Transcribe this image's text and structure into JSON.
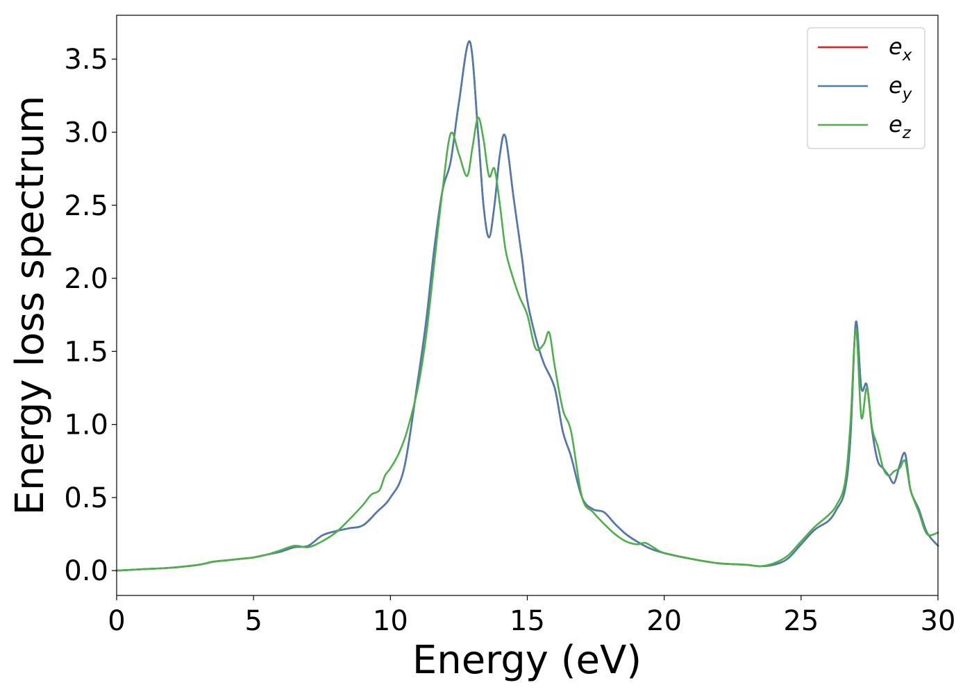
{
  "chart_data": {
    "type": "line",
    "title": "",
    "xlabel": "Energy (eV)",
    "ylabel": "Energy loss spectrum",
    "xlim": [
      0,
      30
    ],
    "ylim": [
      -0.17,
      3.8
    ],
    "xticks": [
      0,
      5,
      10,
      15,
      20,
      25,
      30
    ],
    "xtick_labels": [
      "0",
      "5",
      "10",
      "15",
      "20",
      "25",
      "30"
    ],
    "yticks": [
      0.0,
      0.5,
      1.0,
      1.5,
      2.0,
      2.5,
      3.0,
      3.5
    ],
    "ytick_labels": [
      "0.0",
      "0.5",
      "1.0",
      "1.5",
      "2.0",
      "2.5",
      "3.0",
      "3.5"
    ],
    "grid": false,
    "legend_position": "top-right",
    "series": [
      {
        "name": "e",
        "subscript": "x",
        "color": "#e41a1c",
        "x": [
          0,
          1,
          2,
          3,
          3.5,
          4,
          4.5,
          5,
          5.5,
          6,
          6.5,
          7,
          7.5,
          8,
          8.5,
          9,
          9.5,
          10,
          10.5,
          11,
          11.3,
          11.6,
          11.9,
          12.2,
          12.5,
          12.9,
          13.2,
          13.4,
          13.6,
          13.8,
          14.0,
          14.2,
          14.5,
          14.8,
          15.0,
          15.3,
          15.6,
          16.0,
          16.3,
          16.6,
          17.0,
          17.4,
          17.8,
          18.2,
          18.6,
          19.0,
          19.5,
          20,
          21,
          22,
          23,
          23.5,
          24,
          24.5,
          25,
          25.5,
          26,
          26.3,
          26.6,
          26.8,
          27.0,
          27.2,
          27.4,
          27.6,
          27.8,
          28.0,
          28.2,
          28.4,
          28.6,
          28.8,
          29.0,
          29.3,
          29.6,
          30
        ],
        "values": [
          0,
          0.01,
          0.02,
          0.04,
          0.06,
          0.07,
          0.08,
          0.09,
          0.11,
          0.13,
          0.16,
          0.17,
          0.24,
          0.27,
          0.29,
          0.31,
          0.4,
          0.5,
          0.7,
          1.3,
          1.7,
          2.2,
          2.6,
          2.8,
          3.2,
          3.62,
          3.0,
          2.5,
          2.28,
          2.5,
          2.85,
          2.97,
          2.55,
          2.15,
          1.85,
          1.6,
          1.42,
          1.25,
          0.95,
          0.78,
          0.5,
          0.42,
          0.4,
          0.32,
          0.25,
          0.2,
          0.15,
          0.12,
          0.08,
          0.05,
          0.04,
          0.03,
          0.04,
          0.08,
          0.18,
          0.28,
          0.34,
          0.42,
          0.55,
          0.9,
          1.7,
          1.25,
          1.27,
          0.95,
          0.75,
          0.7,
          0.65,
          0.6,
          0.72,
          0.8,
          0.55,
          0.42,
          0.26,
          0.17
        ]
      },
      {
        "name": "e",
        "subscript": "y",
        "color": "#4a7cb3",
        "x": [
          0,
          1,
          2,
          3,
          3.5,
          4,
          4.5,
          5,
          5.5,
          6,
          6.5,
          7,
          7.5,
          8,
          8.5,
          9,
          9.5,
          10,
          10.5,
          11,
          11.3,
          11.6,
          11.9,
          12.2,
          12.5,
          12.9,
          13.2,
          13.4,
          13.6,
          13.8,
          14.0,
          14.2,
          14.5,
          14.8,
          15.0,
          15.3,
          15.6,
          16.0,
          16.3,
          16.6,
          17.0,
          17.4,
          17.8,
          18.2,
          18.6,
          19.0,
          19.5,
          20,
          21,
          22,
          23,
          23.5,
          24,
          24.5,
          25,
          25.5,
          26,
          26.3,
          26.6,
          26.8,
          27.0,
          27.2,
          27.4,
          27.6,
          27.8,
          28.0,
          28.2,
          28.4,
          28.6,
          28.8,
          29.0,
          29.3,
          29.6,
          30
        ],
        "values": [
          0,
          0.01,
          0.02,
          0.04,
          0.06,
          0.07,
          0.08,
          0.09,
          0.11,
          0.13,
          0.16,
          0.17,
          0.24,
          0.27,
          0.29,
          0.31,
          0.4,
          0.5,
          0.7,
          1.3,
          1.7,
          2.2,
          2.6,
          2.8,
          3.2,
          3.62,
          3.0,
          2.5,
          2.28,
          2.5,
          2.85,
          2.97,
          2.55,
          2.15,
          1.85,
          1.6,
          1.42,
          1.25,
          0.95,
          0.78,
          0.5,
          0.42,
          0.4,
          0.32,
          0.25,
          0.2,
          0.15,
          0.12,
          0.08,
          0.05,
          0.04,
          0.03,
          0.04,
          0.08,
          0.18,
          0.28,
          0.34,
          0.42,
          0.55,
          0.9,
          1.7,
          1.25,
          1.27,
          0.95,
          0.75,
          0.7,
          0.65,
          0.6,
          0.72,
          0.8,
          0.55,
          0.42,
          0.26,
          0.17
        ]
      },
      {
        "name": "e",
        "subscript": "z",
        "color": "#4daf4a",
        "x": [
          0,
          1,
          2,
          3,
          3.5,
          4,
          4.5,
          5,
          5.5,
          6,
          6.5,
          7,
          7.5,
          8,
          8.5,
          9,
          9.3,
          9.6,
          9.8,
          10.0,
          10.3,
          10.6,
          11.0,
          11.3,
          11.6,
          11.9,
          12.2,
          12.5,
          12.8,
          13.0,
          13.2,
          13.4,
          13.6,
          13.8,
          14.0,
          14.2,
          14.4,
          14.7,
          15.0,
          15.3,
          15.6,
          15.8,
          16.0,
          16.3,
          16.6,
          17.0,
          17.4,
          17.8,
          18.2,
          18.6,
          19.0,
          19.3,
          19.6,
          20,
          21,
          22,
          23,
          23.5,
          24,
          24.5,
          25,
          25.5,
          26,
          26.3,
          26.6,
          26.8,
          27.0,
          27.2,
          27.4,
          27.6,
          27.8,
          28.0,
          28.2,
          28.4,
          28.6,
          28.8,
          29.0,
          29.3,
          29.6,
          30
        ],
        "values": [
          0,
          0.01,
          0.02,
          0.04,
          0.06,
          0.07,
          0.08,
          0.09,
          0.11,
          0.14,
          0.17,
          0.16,
          0.2,
          0.26,
          0.35,
          0.45,
          0.52,
          0.55,
          0.65,
          0.7,
          0.8,
          0.95,
          1.25,
          1.6,
          2.1,
          2.6,
          2.99,
          2.85,
          2.7,
          2.9,
          3.1,
          2.95,
          2.7,
          2.75,
          2.5,
          2.2,
          2.05,
          1.88,
          1.75,
          1.52,
          1.55,
          1.63,
          1.4,
          1.1,
          0.95,
          0.5,
          0.4,
          0.32,
          0.25,
          0.2,
          0.18,
          0.19,
          0.16,
          0.12,
          0.08,
          0.05,
          0.04,
          0.03,
          0.05,
          0.1,
          0.2,
          0.3,
          0.38,
          0.45,
          0.6,
          1.0,
          1.65,
          1.05,
          1.25,
          0.97,
          0.85,
          0.7,
          0.65,
          0.68,
          0.7,
          0.75,
          0.55,
          0.4,
          0.25,
          0.26
        ]
      }
    ]
  }
}
